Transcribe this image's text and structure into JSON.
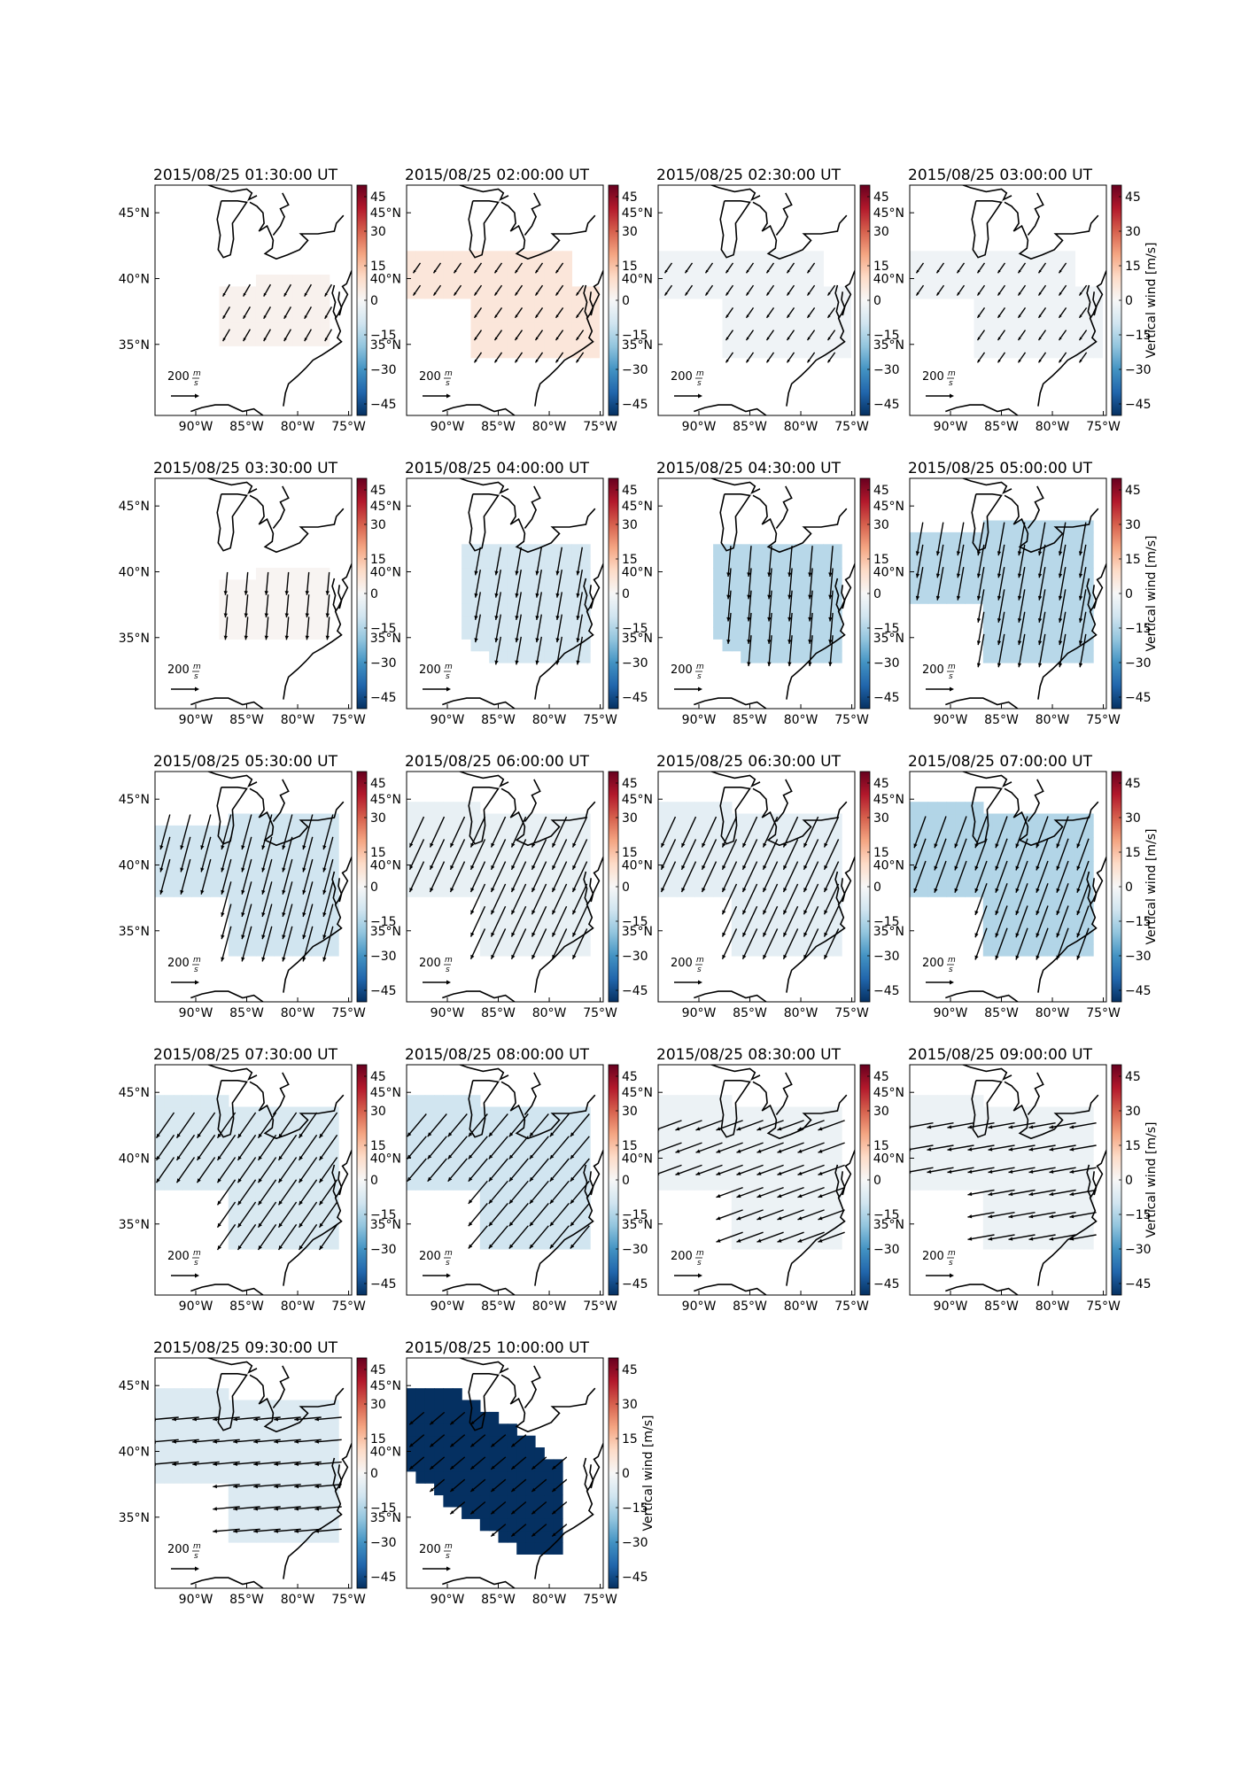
{
  "figure": {
    "colorbar_label": "Vertical wind [m/s]",
    "colorbar_ticks": [
      "45",
      "30",
      "15",
      "0",
      "−15",
      "−30",
      "−45"
    ],
    "lat_ticks": [
      "45°N",
      "40°N",
      "35°N"
    ],
    "lon_ticks": [
      "90°W",
      "85°W",
      "80°W",
      "75°W"
    ],
    "scale_label": "200",
    "scale_unit_num": "m",
    "scale_unit_den": "s",
    "colormap": [
      "#053061",
      "#2166ac",
      "#4393c3",
      "#92c5de",
      "#d1e5f0",
      "#f7f7f7",
      "#fddbc7",
      "#f4a582",
      "#d6604d",
      "#b2182b",
      "#67001f"
    ],
    "color_range": [
      -50,
      50
    ]
  },
  "panels": [
    {
      "title": "2015/08/25 01:30:00 UT",
      "value": 2,
      "shape": "south",
      "dir": 120,
      "mag": 0.25
    },
    {
      "title": "2015/08/25 02:00:00 UT",
      "value": 6,
      "shape": "wide",
      "dir": 125,
      "mag": 0.2
    },
    {
      "title": "2015/08/25 02:30:00 UT",
      "value": -2,
      "shape": "wide",
      "dir": 125,
      "mag": 0.2
    },
    {
      "title": "2015/08/25 03:00:00 UT",
      "value": -2,
      "shape": "wide",
      "dir": 125,
      "mag": 0.2
    },
    {
      "title": "2015/08/25 03:30:00 UT",
      "value": 1,
      "shape": "south",
      "dir": 95,
      "mag": 0.6
    },
    {
      "title": "2015/08/25 04:00:00 UT",
      "value": -9,
      "shape": "east",
      "dir": 100,
      "mag": 0.8
    },
    {
      "title": "2015/08/25 04:30:00 UT",
      "value": -14,
      "shape": "east",
      "dir": 95,
      "mag": 0.9
    },
    {
      "title": "2015/08/25 05:00:00 UT",
      "value": -14,
      "shape": "split",
      "dir": 100,
      "mag": 1.0
    },
    {
      "title": "2015/08/25 05:30:00 UT",
      "value": -10,
      "shape": "split",
      "dir": 105,
      "mag": 1.1
    },
    {
      "title": "2015/08/25 06:00:00 UT",
      "value": -4,
      "shape": "big",
      "dir": 115,
      "mag": 1.0
    },
    {
      "title": "2015/08/25 06:30:00 UT",
      "value": -5,
      "shape": "big",
      "dir": 115,
      "mag": 1.0
    },
    {
      "title": "2015/08/25 07:00:00 UT",
      "value": -15,
      "shape": "big",
      "dir": 110,
      "mag": 1.0
    },
    {
      "title": "2015/08/25 07:30:00 UT",
      "value": -8,
      "shape": "big",
      "dir": 125,
      "mag": 0.9
    },
    {
      "title": "2015/08/25 08:00:00 UT",
      "value": -10,
      "shape": "big",
      "dir": 130,
      "mag": 0.85
    },
    {
      "title": "2015/08/25 08:30:00 UT",
      "value": -3,
      "shape": "big",
      "dir": 160,
      "mag": 0.8
    },
    {
      "title": "2015/08/25 09:00:00 UT",
      "value": -3,
      "shape": "big",
      "dir": 170,
      "mag": 0.75
    },
    {
      "title": "2015/08/25 09:30:00 UT",
      "value": -7,
      "shape": "big",
      "dir": 175,
      "mag": 0.75
    },
    {
      "title": "2015/08/25 10:00:00 UT",
      "value": -50,
      "shape": "band",
      "dir": 140,
      "mag": 0.45
    }
  ]
}
